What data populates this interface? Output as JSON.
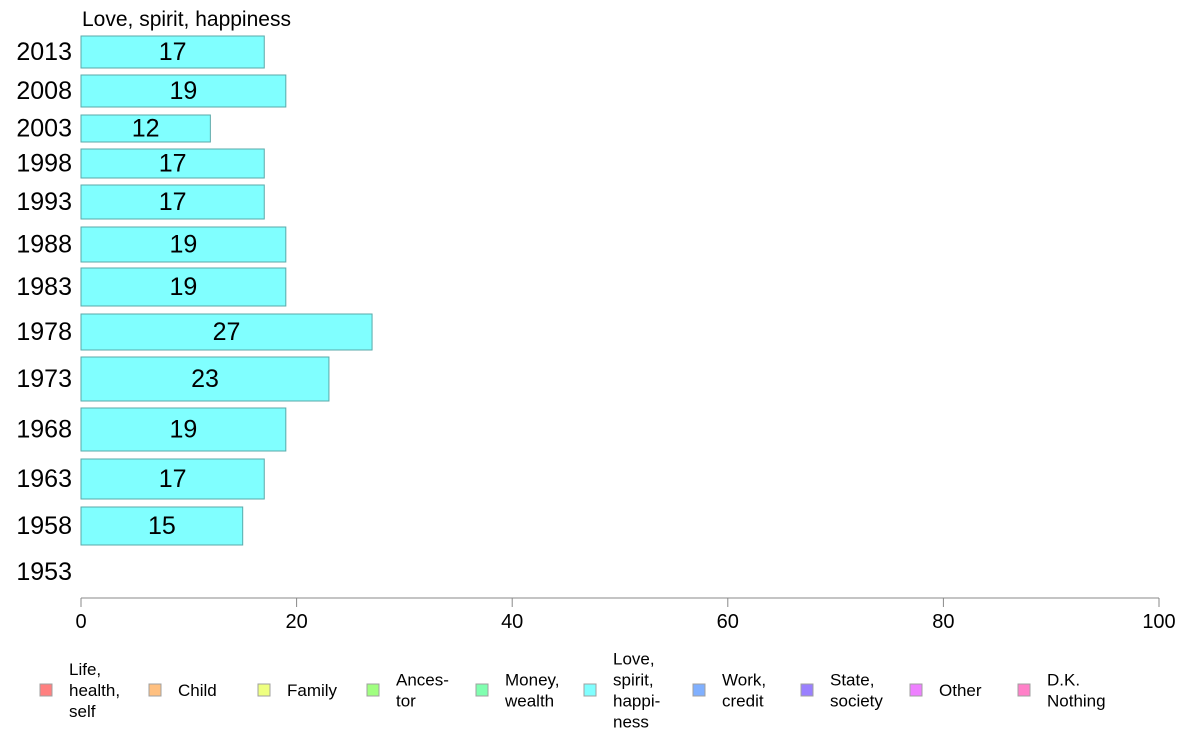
{
  "chart_data": {
    "type": "bar",
    "orientation": "horizontal",
    "title": "Love, spirit, happiness",
    "categories": [
      "2013",
      "2008",
      "2003",
      "1998",
      "1993",
      "1988",
      "1983",
      "1978",
      "1973",
      "1968",
      "1963",
      "1958",
      "1953"
    ],
    "values": [
      17,
      19,
      12,
      17,
      17,
      19,
      19,
      27,
      23,
      19,
      17,
      15,
      null
    ],
    "bar_fill": "#80ffff",
    "bar_stroke": "#5aa9a9",
    "xlim": [
      0,
      100
    ],
    "xticks": [
      0,
      20,
      40,
      60,
      80,
      100
    ],
    "grid": false,
    "legend": {
      "placement": "bottom",
      "items": [
        {
          "lines": [
            "Life,",
            "health,",
            "self"
          ],
          "color": "#ff8080"
        },
        {
          "lines": [
            "Child"
          ],
          "color": "#ffc080"
        },
        {
          "lines": [
            "Family"
          ],
          "color": "#eeff80"
        },
        {
          "lines": [
            "Ances-",
            "tor"
          ],
          "color": "#a0ff80"
        },
        {
          "lines": [
            "Money,",
            "wealth"
          ],
          "color": "#80ffb0"
        },
        {
          "lines": [
            "Love,",
            "spirit,",
            "happi-",
            "ness"
          ],
          "color": "#80ffff"
        },
        {
          "lines": [
            "Work,",
            "credit"
          ],
          "color": "#80b0ff"
        },
        {
          "lines": [
            "State,",
            "society"
          ],
          "color": "#9a80ff"
        },
        {
          "lines": [
            "Other"
          ],
          "color": "#ee80ff"
        },
        {
          "lines": [
            "D.K.",
            "Nothing"
          ],
          "color": "#ff80c8"
        }
      ]
    }
  }
}
